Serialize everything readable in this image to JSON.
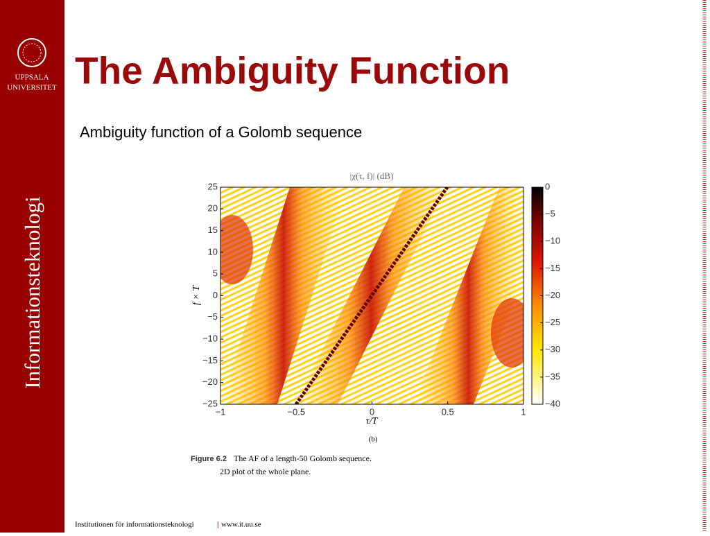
{
  "header": {
    "title": "The Ambiguity Function",
    "subtitle": "Ambiguity function of a Golomb sequence"
  },
  "sidebar": {
    "logo_line1": "UPPSALA",
    "logo_line2": "UNIVERSITET",
    "department": "Informationsteknologi"
  },
  "figure": {
    "title": "|χ(τ, f)| (dB)",
    "xlabel": "τ/T",
    "ylabel": "f × T",
    "xlim": [
      -1,
      1
    ],
    "ylim": [
      -25,
      25
    ],
    "xticks": [
      {
        "value": -1,
        "label": "−1"
      },
      {
        "value": -0.5,
        "label": "−0.5"
      },
      0,
      0.5,
      1
    ],
    "yticks": [
      {
        "value": -25,
        "label": "−25"
      },
      {
        "value": -20,
        "label": "−20"
      },
      {
        "value": -15,
        "label": "−15"
      },
      {
        "value": -10,
        "label": "−10"
      },
      {
        "value": -5,
        "label": "−5"
      },
      0,
      5,
      10,
      15,
      20,
      25
    ],
    "colorbar": {
      "lim": [
        -40,
        0
      ],
      "ticks": [
        0,
        {
          "value": -5,
          "label": "−5"
        },
        {
          "value": -10,
          "label": "−10"
        },
        {
          "value": -15,
          "label": "−15"
        },
        {
          "value": -20,
          "label": "−20"
        },
        {
          "value": -25,
          "label": "−25"
        },
        {
          "value": -30,
          "label": "−30"
        },
        {
          "value": -35,
          "label": "−35"
        },
        {
          "value": -40,
          "label": "−40"
        }
      ]
    },
    "panel": "(b)",
    "caption": {
      "label": "Figure 6.2",
      "line1": "The AF of a length-50 Golomb sequence.",
      "line2": "2D plot of the whole plane."
    }
  },
  "footer": {
    "institution": "Institutionen för informationsteknologi",
    "separator": "|",
    "url": "www.it.uu.se"
  }
}
